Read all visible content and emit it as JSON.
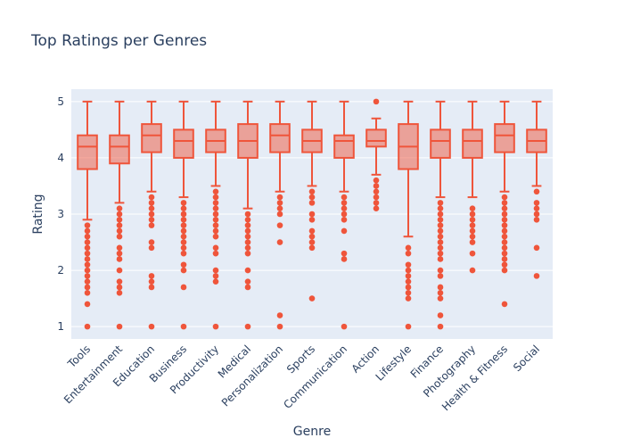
{
  "chart_data": {
    "type": "box",
    "title": "Top Ratings per Genres",
    "xlabel": "Genre",
    "ylabel": "Rating",
    "ylim": [
      0.78,
      5.22
    ],
    "yticks": [
      "1",
      "2",
      "3",
      "4",
      "5"
    ],
    "grid": true,
    "colors": {
      "background": "#E5ECF6",
      "grid": "#ffffff",
      "box_line": "#EF553B",
      "box_fill": "rgba(239,85,59,0.5)",
      "text": "#2a3f5f"
    },
    "categories": [
      "Tools",
      "Entertainment",
      "Education",
      "Business",
      "Productivity",
      "Medical",
      "Personalization",
      "Sports",
      "Communication",
      "Action",
      "Lifestyle",
      "Finance",
      "Photography",
      "Health & Fitness",
      "Social"
    ],
    "boxes": [
      {
        "category": "Tools",
        "min": 2.9,
        "q1": 3.8,
        "median": 4.2,
        "q3": 4.4,
        "max": 5.0,
        "outliers": [
          2.8,
          2.7,
          2.6,
          2.5,
          2.4,
          2.3,
          2.2,
          2.1,
          2.0,
          1.9,
          1.8,
          1.7,
          1.6,
          1.4,
          1.0
        ]
      },
      {
        "category": "Entertainment",
        "min": 3.2,
        "q1": 3.9,
        "median": 4.2,
        "q3": 4.4,
        "max": 5.0,
        "outliers": [
          3.1,
          3.0,
          2.9,
          2.8,
          2.7,
          2.6,
          2.4,
          2.3,
          2.2,
          2.0,
          1.8,
          1.7,
          1.6,
          1.0
        ]
      },
      {
        "category": "Education",
        "min": 3.4,
        "q1": 4.1,
        "median": 4.4,
        "q3": 4.6,
        "max": 5.0,
        "outliers": [
          3.3,
          3.2,
          3.1,
          3.0,
          2.9,
          2.8,
          2.5,
          2.4,
          1.9,
          1.8,
          1.7,
          1.0
        ]
      },
      {
        "category": "Business",
        "min": 3.3,
        "q1": 4.0,
        "median": 4.3,
        "q3": 4.5,
        "max": 5.0,
        "outliers": [
          3.2,
          3.1,
          3.0,
          2.9,
          2.8,
          2.7,
          2.6,
          2.5,
          2.4,
          2.3,
          2.1,
          2.0,
          1.7,
          1.0
        ]
      },
      {
        "category": "Productivity",
        "min": 3.5,
        "q1": 4.1,
        "median": 4.3,
        "q3": 4.5,
        "max": 5.0,
        "outliers": [
          3.4,
          3.3,
          3.2,
          3.1,
          3.0,
          2.9,
          2.8,
          2.7,
          2.6,
          2.4,
          2.3,
          2.0,
          1.9,
          1.8,
          1.0
        ]
      },
      {
        "category": "Medical",
        "min": 3.1,
        "q1": 4.0,
        "median": 4.3,
        "q3": 4.6,
        "max": 5.0,
        "outliers": [
          3.0,
          2.9,
          2.8,
          2.7,
          2.6,
          2.5,
          2.4,
          2.3,
          2.0,
          1.8,
          1.7,
          1.0
        ]
      },
      {
        "category": "Personalization",
        "min": 3.4,
        "q1": 4.1,
        "median": 4.4,
        "q3": 4.6,
        "max": 5.0,
        "outliers": [
          3.3,
          3.2,
          3.1,
          3.0,
          2.8,
          2.5,
          1.2,
          1.0
        ]
      },
      {
        "category": "Sports",
        "min": 3.5,
        "q1": 4.1,
        "median": 4.3,
        "q3": 4.5,
        "max": 5.0,
        "outliers": [
          3.4,
          3.3,
          3.2,
          3.0,
          2.9,
          2.7,
          2.6,
          2.5,
          2.4,
          1.5
        ]
      },
      {
        "category": "Communication",
        "min": 3.4,
        "q1": 4.0,
        "median": 4.3,
        "q3": 4.4,
        "max": 5.0,
        "outliers": [
          3.3,
          3.2,
          3.1,
          3.0,
          2.9,
          2.7,
          2.3,
          2.2,
          1.0
        ]
      },
      {
        "category": "Action",
        "min": 3.7,
        "q1": 4.2,
        "median": 4.3,
        "q3": 4.5,
        "max": 4.7,
        "outliers": [
          5.0,
          3.6,
          3.5,
          3.4,
          3.3,
          3.2,
          3.1
        ]
      },
      {
        "category": "Lifestyle",
        "min": 2.6,
        "q1": 3.8,
        "median": 4.2,
        "q3": 4.6,
        "max": 5.0,
        "outliers": [
          2.4,
          2.3,
          2.1,
          2.0,
          1.9,
          1.8,
          1.7,
          1.6,
          1.5,
          1.0
        ]
      },
      {
        "category": "Finance",
        "min": 3.3,
        "q1": 4.0,
        "median": 4.3,
        "q3": 4.5,
        "max": 5.0,
        "outliers": [
          3.2,
          3.1,
          3.0,
          2.9,
          2.8,
          2.7,
          2.6,
          2.5,
          2.4,
          2.3,
          2.2,
          2.0,
          1.9,
          1.7,
          1.6,
          1.5,
          1.2,
          1.0
        ]
      },
      {
        "category": "Photography",
        "min": 3.3,
        "q1": 4.0,
        "median": 4.3,
        "q3": 4.5,
        "max": 5.0,
        "outliers": [
          3.1,
          3.0,
          2.9,
          2.8,
          2.7,
          2.6,
          2.5,
          2.3,
          2.0
        ]
      },
      {
        "category": "Health & Fitness",
        "min": 3.4,
        "q1": 4.1,
        "median": 4.4,
        "q3": 4.6,
        "max": 5.0,
        "outliers": [
          3.3,
          3.2,
          3.1,
          3.0,
          2.9,
          2.8,
          2.7,
          2.6,
          2.5,
          2.4,
          2.3,
          2.2,
          2.1,
          2.0,
          1.4
        ]
      },
      {
        "category": "Social",
        "min": 3.5,
        "q1": 4.1,
        "median": 4.3,
        "q3": 4.5,
        "max": 5.0,
        "outliers": [
          3.4,
          3.2,
          3.1,
          3.0,
          2.9,
          2.4,
          1.9
        ]
      }
    ]
  }
}
